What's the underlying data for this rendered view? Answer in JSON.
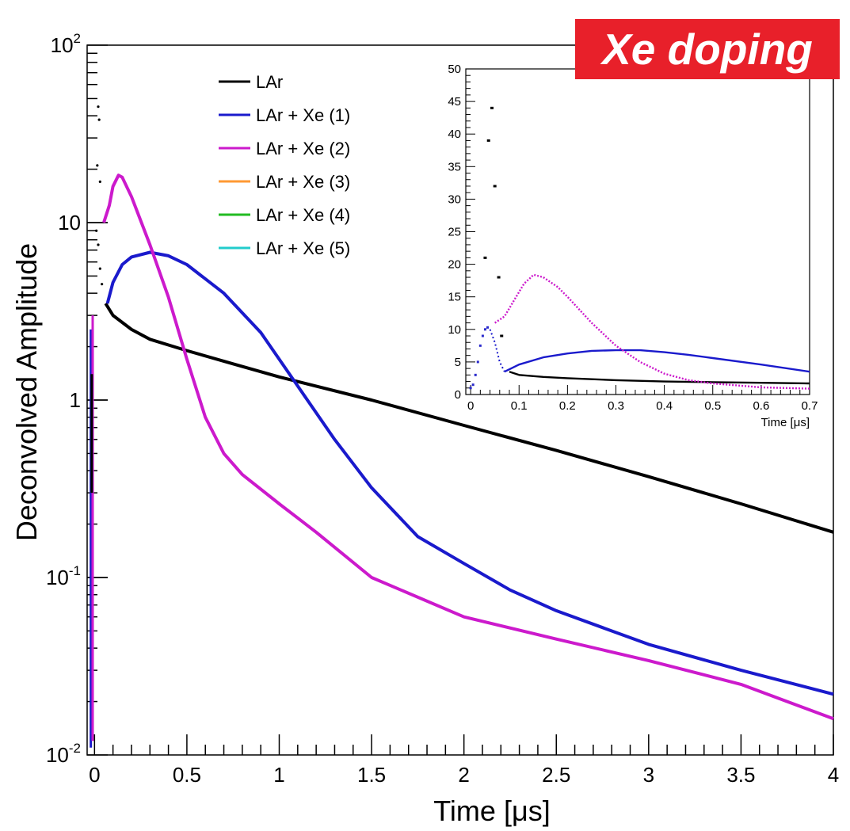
{
  "badge": {
    "text": "Xe doping",
    "background": "#e8202a",
    "color": "#ffffff"
  },
  "chart_data": [
    {
      "type": "line",
      "ylabel": "Deconvolved Amplitude",
      "xlabel": "Time [μs]",
      "xlim": [
        -0.04,
        4.0
      ],
      "ylim": [
        0.01,
        100
      ],
      "yscale": "log",
      "x_ticks": [
        "0",
        "0.5",
        "1",
        "1.5",
        "2",
        "2.5",
        "3",
        "3.5",
        "4"
      ],
      "y_ticks": [
        {
          "base": "10",
          "exp": "-2"
        },
        {
          "base": "10",
          "exp": "-1"
        },
        {
          "base": "1",
          "exp": ""
        },
        {
          "base": "10",
          "exp": ""
        },
        {
          "base": "10",
          "exp": "2"
        }
      ],
      "legend_position": "top-left",
      "series": [
        {
          "name": "LAr",
          "color": "#000000",
          "x": [
            0.06,
            0.1,
            0.2,
            0.3,
            0.5,
            0.75,
            1.0,
            1.5,
            2.0,
            2.5,
            3.0,
            3.5,
            4.0
          ],
          "y": [
            3.5,
            3.0,
            2.5,
            2.2,
            1.9,
            1.6,
            1.35,
            1.0,
            0.72,
            0.52,
            0.37,
            0.26,
            0.18
          ]
        },
        {
          "name": "LAr + Xe (1)",
          "color": "#1a1acc",
          "x": [
            0.07,
            0.1,
            0.15,
            0.2,
            0.3,
            0.4,
            0.5,
            0.7,
            0.9,
            1.1,
            1.3,
            1.5,
            1.75,
            2.0,
            2.25,
            2.5,
            3.0,
            3.5,
            4.0
          ],
          "y": [
            3.5,
            4.6,
            5.8,
            6.4,
            6.8,
            6.5,
            5.8,
            4.0,
            2.4,
            1.2,
            0.6,
            0.32,
            0.17,
            0.12,
            0.085,
            0.065,
            0.042,
            0.03,
            0.022
          ]
        },
        {
          "name": "LAr + Xe (2)",
          "color": "#cc1acc",
          "x": [
            0.05,
            0.08,
            0.1,
            0.13,
            0.15,
            0.2,
            0.3,
            0.4,
            0.5,
            0.6,
            0.7,
            0.8,
            1.0,
            1.2,
            1.5,
            2.0,
            2.5,
            3.0,
            3.5,
            4.0
          ],
          "y": [
            10.0,
            12.5,
            16.0,
            18.5,
            18.0,
            14.0,
            7.5,
            3.8,
            1.7,
            0.8,
            0.5,
            0.38,
            0.26,
            0.18,
            0.1,
            0.06,
            0.045,
            0.034,
            0.025,
            0.016
          ]
        },
        {
          "name": "LAr + Xe (3)",
          "color": "#ff9933",
          "x": [],
          "y": []
        },
        {
          "name": "LAr + Xe (4)",
          "color": "#22bb22",
          "x": [],
          "y": []
        },
        {
          "name": "LAr + Xe (5)",
          "color": "#22cccc",
          "x": [],
          "y": []
        }
      ]
    },
    {
      "type": "line",
      "xlabel": "Time [μs]",
      "ylabel": "",
      "xlim": [
        -0.01,
        0.7
      ],
      "ylim": [
        0,
        50
      ],
      "x_ticks": [
        "0",
        "0.1",
        "0.2",
        "0.3",
        "0.4",
        "0.5",
        "0.6",
        "0.7"
      ],
      "y_ticks": [
        "0",
        "5",
        "10",
        "15",
        "20",
        "25",
        "30",
        "35",
        "40",
        "45",
        "50"
      ],
      "series": [
        {
          "name": "LAr",
          "color": "#000000",
          "x": [
            0.08,
            0.1,
            0.15,
            0.2,
            0.3,
            0.4,
            0.5,
            0.6,
            0.7
          ],
          "y": [
            3.5,
            3.0,
            2.7,
            2.5,
            2.2,
            2.0,
            1.9,
            1.8,
            1.7
          ]
        },
        {
          "name": "LAr + Xe (1)",
          "color": "#1a1acc",
          "x": [
            0.07,
            0.1,
            0.15,
            0.2,
            0.25,
            0.3,
            0.35,
            0.4,
            0.45,
            0.5,
            0.6,
            0.7
          ],
          "y": [
            3.5,
            4.6,
            5.7,
            6.3,
            6.7,
            6.8,
            6.8,
            6.5,
            6.1,
            5.6,
            4.6,
            3.5
          ]
        },
        {
          "name": "LAr + Xe (2)",
          "color": "#cc1acc",
          "x": [
            0.05,
            0.07,
            0.09,
            0.11,
            0.13,
            0.15,
            0.18,
            0.2,
            0.25,
            0.3,
            0.35,
            0.4,
            0.45,
            0.5,
            0.6,
            0.7
          ],
          "y": [
            11.0,
            12.0,
            14.5,
            17.0,
            18.4,
            18.0,
            16.5,
            15.0,
            11.0,
            7.5,
            5.0,
            3.2,
            2.2,
            1.7,
            1.1,
            0.9
          ]
        }
      ],
      "early_points": {
        "color": "#000000",
        "x": [
          0.03,
          0.037,
          0.044,
          0.05,
          0.058,
          0.064
        ],
        "y": [
          21.0,
          39.0,
          44.0,
          32.0,
          18.0,
          9.0
        ]
      }
    }
  ]
}
